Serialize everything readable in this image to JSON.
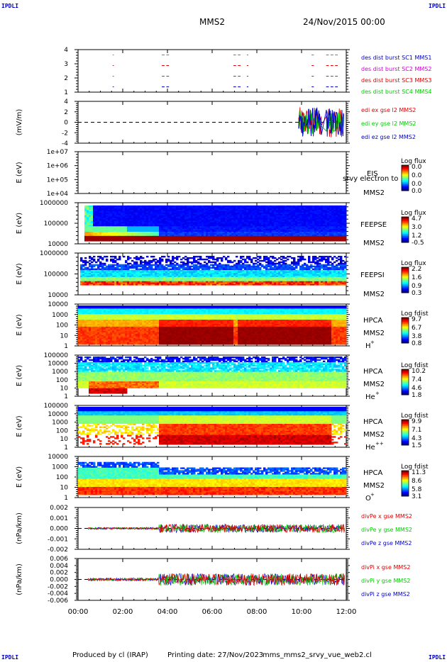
{
  "header": {
    "corner_label": "IPDLI",
    "mission": "MMS2",
    "date": "24/Nov/2015 00:00"
  },
  "footer": {
    "produced_by": "Produced by cl (IRAP)",
    "printing_date": "Printing date: 27/Nov/2023",
    "config": "mms_mms2_srvy_vue_web2.cl"
  },
  "colors": {
    "c1": "#0000cc",
    "c2": "#d000d0",
    "c3": "#dd0000",
    "c4": "#00cc00",
    "x": "#dd0000",
    "y": "#00cc00",
    "z": "#0000cc"
  },
  "chart_data": [
    {
      "type": "line",
      "id": "des_burst",
      "ylabel": "",
      "y_ticks": [
        "1",
        "2",
        "3",
        "4"
      ],
      "ylim": [
        0.5,
        4.5
      ],
      "x_ticks": [
        "00:00",
        "02:00",
        "04:00",
        "06:00",
        "08:00",
        "10:00",
        "12:00"
      ],
      "xlim_hours": [
        0,
        12
      ],
      "legend": [
        {
          "text": "des dist burst SC1 MMS1",
          "color": "#0000cc"
        },
        {
          "text": "des dist burst SC2 MMS2",
          "color": "#d000d0"
        },
        {
          "text": "des dist burst SC3 MMS3",
          "color": "#dd0000"
        },
        {
          "text": "des dist burst SC4 MMS4",
          "color": "#00cc00"
        }
      ],
      "intervals_hours": [
        [
          1.55,
          1.6
        ],
        [
          3.75,
          4.15
        ],
        [
          6.95,
          7.35
        ],
        [
          7.55,
          7.62
        ],
        [
          10.45,
          10.55
        ],
        [
          11.1,
          11.7
        ]
      ]
    },
    {
      "type": "line",
      "id": "edi",
      "ylabel": "(mV/m)",
      "y_ticks": [
        "-4",
        "-2",
        "0",
        "2",
        "4"
      ],
      "ylim": [
        -4.5,
        4.5
      ],
      "legend": [
        {
          "text": "edi ex gse l2 MMS2",
          "color": "#dd0000"
        },
        {
          "text": "edi ey gse l2 MMS2",
          "color": "#00cc00"
        },
        {
          "text": "edi ez gse l2 MMS2",
          "color": "#0000cc"
        }
      ],
      "data_start_hours": 9.75
    },
    {
      "type": "heatmap",
      "id": "eis",
      "ylabel": "E (eV)",
      "y_ticks": [
        "1e+04",
        "1e+05",
        "1e+06",
        "1e+07"
      ],
      "instrument": "EIS",
      "spacecraft": "MMS2",
      "overlap_text": "srvy electron to",
      "cbar_title": "Log flux",
      "cbar_ticks": [
        "0.0",
        "0.0",
        "0.0",
        "0.0"
      ],
      "empty": true
    },
    {
      "type": "heatmap",
      "id": "feepse",
      "ylabel": "E (eV)",
      "y_ticks": [
        "10000",
        "100000",
        "1000000"
      ],
      "instrument": "FEEPSE",
      "spacecraft": "MMS2",
      "cbar_title": "Log flux",
      "cbar_ticks": [
        "4.7",
        "3.0",
        "1.2",
        "-0.5"
      ]
    },
    {
      "type": "heatmap",
      "id": "feepsi",
      "ylabel": "E (eV)",
      "y_ticks": [
        "10000",
        "100000",
        "1000000"
      ],
      "instrument": "FEEPSI",
      "spacecraft": "MMS2",
      "cbar_title": "Log flux",
      "cbar_ticks": [
        "2.2",
        "1.6",
        "0.9",
        "0.3"
      ]
    },
    {
      "type": "heatmap",
      "id": "hpca_h",
      "ylabel": "E (eV)",
      "y_ticks": [
        "1",
        "10",
        "100",
        "1000",
        "10000"
      ],
      "instrument": "HPCA",
      "spacecraft": "MMS2",
      "species": "H",
      "species_sup": "+",
      "cbar_title": "Log fdist",
      "cbar_ticks": [
        "9.7",
        "6.7",
        "3.8",
        "0.8"
      ]
    },
    {
      "type": "heatmap",
      "id": "hpca_he",
      "ylabel": "E (eV)",
      "y_ticks": [
        "1",
        "10",
        "100",
        "1000",
        "10000",
        "100000"
      ],
      "instrument": "HPCA",
      "spacecraft": "MMS2",
      "species": "He",
      "species_sup": "+",
      "cbar_title": "Log fdist",
      "cbar_ticks": [
        "10.2",
        "7.4",
        "4.6",
        "1.8"
      ]
    },
    {
      "type": "heatmap",
      "id": "hpca_hepp",
      "ylabel": "E (eV)",
      "y_ticks": [
        "1",
        "10",
        "100",
        "1000",
        "10000",
        "100000"
      ],
      "instrument": "HPCA",
      "spacecraft": "MMS2",
      "species": "He",
      "species_sup": "++",
      "cbar_title": "Log fdist",
      "cbar_ticks": [
        "9.9",
        "7.1",
        "4.3",
        "1.5"
      ]
    },
    {
      "type": "heatmap",
      "id": "hpca_o",
      "ylabel": "E (eV)",
      "y_ticks": [
        "1",
        "10",
        "100",
        "1000",
        "10000"
      ],
      "instrument": "HPCA",
      "spacecraft": "MMS2",
      "species": "O",
      "species_sup": "+",
      "cbar_title": "Log fdist",
      "cbar_ticks": [
        "11.3",
        "8.6",
        "5.8",
        "3.1"
      ]
    },
    {
      "type": "line",
      "id": "divpe",
      "ylabel": "(nPa/km)",
      "y_ticks": [
        "-0.002",
        "-0.001",
        "0.000",
        "0.001",
        "0.002"
      ],
      "ylim": [
        -0.003,
        0.003
      ],
      "legend": [
        {
          "text": "divPe x gse MMS2",
          "color": "#dd0000"
        },
        {
          "text": "divPe y gse MMS2",
          "color": "#00cc00"
        },
        {
          "text": "divPe z gse MMS2",
          "color": "#0000cc"
        }
      ]
    },
    {
      "type": "line",
      "id": "divpi",
      "ylabel": "(nPa/km)",
      "y_ticks": [
        "-0.006",
        "-0.004",
        "-0.002",
        "0.000",
        "0.002",
        "0.004",
        "0.006"
      ],
      "ylim": [
        -0.007,
        0.007
      ],
      "legend": [
        {
          "text": "divPi x gse MMS2",
          "color": "#dd0000"
        },
        {
          "text": "divPi y gse MMS2",
          "color": "#00cc00"
        },
        {
          "text": "divPi z gse MMS2",
          "color": "#0000cc"
        }
      ]
    }
  ]
}
